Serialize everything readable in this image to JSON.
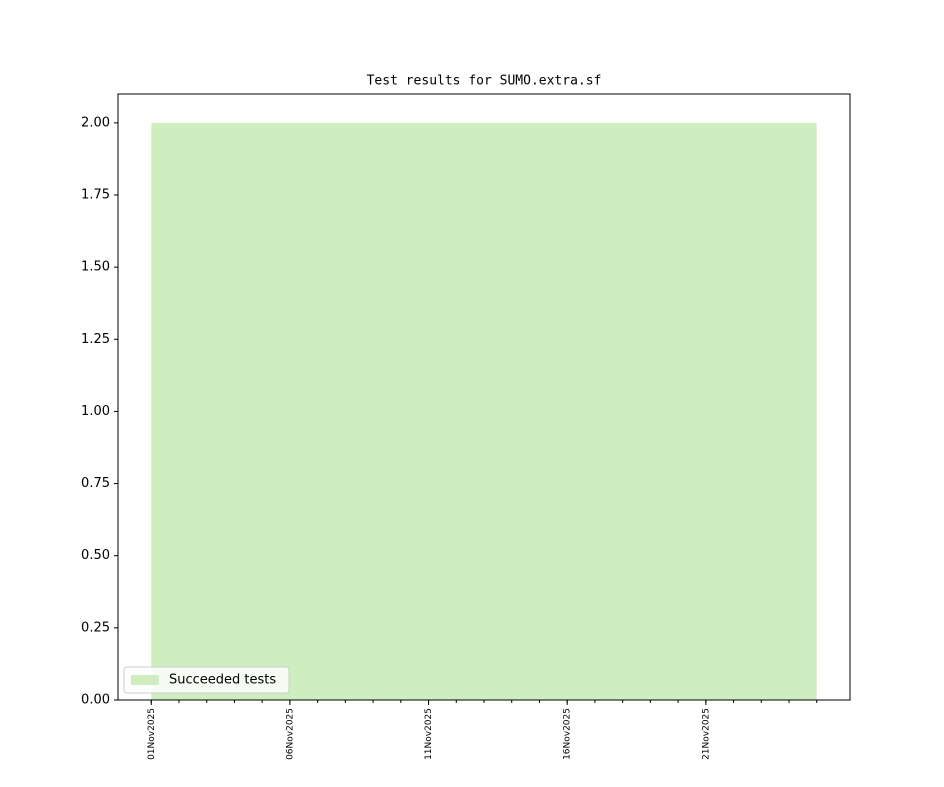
{
  "chart_data": {
    "type": "area",
    "title": "Test results for SUMO.extra.sf",
    "x": [
      "2025-11-01",
      "2025-11-02",
      "2025-11-03",
      "2025-11-04",
      "2025-11-05",
      "2025-11-06",
      "2025-11-07",
      "2025-11-08",
      "2025-11-09",
      "2025-11-10",
      "2025-11-11",
      "2025-11-12",
      "2025-11-13",
      "2025-11-14",
      "2025-11-15",
      "2025-11-16",
      "2025-11-17",
      "2025-11-18",
      "2025-11-19",
      "2025-11-20",
      "2025-11-21",
      "2025-11-22",
      "2025-11-23",
      "2025-11-24",
      "2025-11-25"
    ],
    "series": [
      {
        "name": "Succeeded tests",
        "color": "#cfeec0",
        "values": [
          2,
          2,
          2,
          2,
          2,
          2,
          2,
          2,
          2,
          2,
          2,
          2,
          2,
          2,
          2,
          2,
          2,
          2,
          2,
          2,
          2,
          2,
          2,
          2,
          2
        ]
      }
    ],
    "xlim": [
      "2025-10-30T19:12:00Z",
      "2025-11-26T04:48:00Z"
    ],
    "xticks": [
      {
        "value": "2025-11-01",
        "label": "01Nov2025"
      },
      {
        "value": "2025-11-06",
        "label": "06Nov2025"
      },
      {
        "value": "2025-11-11",
        "label": "11Nov2025"
      },
      {
        "value": "2025-11-16",
        "label": "16Nov2025"
      },
      {
        "value": "2025-11-21",
        "label": "21Nov2025"
      }
    ],
    "ylim": [
      0,
      2.1
    ],
    "yticks": [
      {
        "value": 0,
        "label": "0.00"
      },
      {
        "value": 0.25,
        "label": "0.25"
      },
      {
        "value": 0.5,
        "label": "0.50"
      },
      {
        "value": 0.75,
        "label": "0.75"
      },
      {
        "value": 1,
        "label": "1.00"
      },
      {
        "value": 1.25,
        "label": "1.25"
      },
      {
        "value": 1.5,
        "label": "1.50"
      },
      {
        "value": 1.75,
        "label": "1.75"
      },
      {
        "value": 2,
        "label": "2.00"
      }
    ],
    "legend": "lower left"
  }
}
